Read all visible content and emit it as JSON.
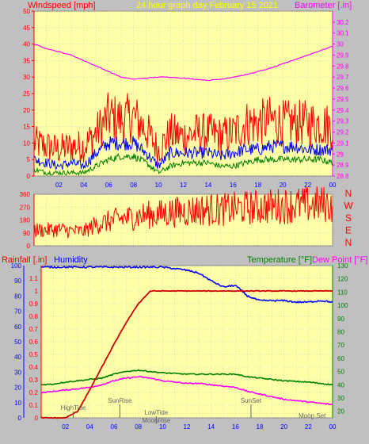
{
  "header": {
    "windspeed_label": "Windspeed [mph]",
    "title": "24 hour graph day   February 15 2021",
    "barometer_label": "Barometer [.in]"
  },
  "colors": {
    "background": "#c0c0c0",
    "plot": "#ffffa8",
    "grid": "#c8c8c8",
    "gust": "#ff0000",
    "wind_avg": "#0000ff",
    "wind_low": "#008000",
    "barometer": "#ff00ff",
    "direction": "#ff0000",
    "rain": "#cc0000",
    "humidity": "#0000ff",
    "temperature": "#008000",
    "dewpoint": "#ff00ff",
    "axis_red": "#ff0000",
    "axis_blue": "#0000ff",
    "axis_green": "#008000",
    "axis_magenta": "#ff00ff",
    "axis_gray": "#666666"
  },
  "chart_data": [
    {
      "type": "line",
      "name": "wind-barometer",
      "x_ticks": [
        "02",
        "04",
        "06",
        "08",
        "10",
        "12",
        "14",
        "16",
        "18",
        "20",
        "22",
        "00"
      ],
      "left_axis": {
        "label": "Windspeed [mph]",
        "ylim": [
          0,
          50
        ],
        "ticks": [
          0,
          5,
          10,
          15,
          20,
          25,
          30,
          35,
          40,
          45,
          50
        ]
      },
      "right_axis": {
        "label": "Barometer [.in]",
        "ylim": [
          28.8,
          30.3
        ],
        "ticks": [
          "28.8",
          "28.9",
          "29",
          "29.1",
          "29.2",
          "29.3",
          "29.4",
          "29.5",
          "29.6",
          "29.7",
          "29.8",
          "29.9",
          "30",
          "30.1",
          "30.2"
        ]
      },
      "x_hours": [
        0,
        1,
        2,
        3,
        4,
        5,
        6,
        7,
        8,
        9,
        10,
        11,
        12,
        13,
        14,
        15,
        16,
        17,
        18,
        19,
        20,
        21,
        22,
        23,
        24
      ],
      "series": [
        {
          "role": "gust",
          "axis": "left",
          "values": [
            10,
            9,
            8,
            9,
            9,
            13,
            18,
            17,
            18,
            14,
            8,
            13,
            12,
            13,
            13,
            12,
            13,
            16,
            16,
            17,
            16,
            16,
            16,
            16,
            15
          ]
        },
        {
          "role": "average",
          "axis": "left",
          "values": [
            5,
            4,
            3,
            4,
            3,
            7,
            10,
            10,
            10,
            7,
            3,
            7,
            7,
            7,
            7,
            6,
            7,
            8,
            8,
            9,
            9,
            9,
            8,
            8,
            8
          ]
        },
        {
          "role": "low",
          "axis": "left",
          "values": [
            2,
            1,
            1,
            1,
            1,
            3,
            5,
            6,
            6,
            4,
            1,
            3,
            4,
            4,
            4,
            3,
            3,
            4,
            5,
            5,
            5,
            5,
            5,
            5,
            4
          ]
        },
        {
          "role": "barometer",
          "axis": "right",
          "values": [
            30.0,
            29.96,
            29.93,
            29.9,
            29.85,
            29.8,
            29.75,
            29.7,
            29.68,
            29.69,
            29.7,
            29.7,
            29.69,
            29.68,
            29.67,
            29.68,
            29.7,
            29.72,
            29.75,
            29.78,
            29.82,
            29.86,
            29.9,
            29.94,
            29.98
          ]
        }
      ]
    },
    {
      "type": "line",
      "name": "wind-direction",
      "left_axis": {
        "ylim": [
          0,
          360
        ],
        "ticks": [
          0,
          90,
          180,
          270,
          360
        ]
      },
      "right_labels": [
        "N",
        "W",
        "S",
        "E",
        "N"
      ],
      "x_hours": [
        0,
        1,
        2,
        3,
        4,
        5,
        6,
        7,
        8,
        9,
        10,
        11,
        12,
        13,
        14,
        15,
        16,
        17,
        18,
        19,
        20,
        21,
        22,
        23,
        24
      ],
      "series": [
        {
          "role": "direction",
          "values": [
            110,
            110,
            115,
            105,
            100,
            150,
            170,
            190,
            200,
            215,
            220,
            235,
            240,
            250,
            255,
            250,
            260,
            265,
            270,
            275,
            280,
            285,
            285,
            290,
            290
          ]
        }
      ]
    },
    {
      "type": "line",
      "name": "rain-humidity-temperature",
      "x_ticks": [
        "02",
        "04",
        "06",
        "08",
        "10",
        "12",
        "14",
        "16",
        "18",
        "20",
        "22",
        "00"
      ],
      "left_labels": {
        "rainfall": "Rainfall [.in]",
        "humidity": "Humidity"
      },
      "right_labels": {
        "temperature": "Temperature [°F]",
        "dewpoint": "Dew Point [°F]"
      },
      "rain_axis": {
        "ylim": [
          0,
          1.2
        ],
        "ticks": [
          "0",
          "0.1",
          "0.2",
          "0.3",
          "0.4",
          "0.5",
          "0.6",
          "0.7",
          "0.8",
          "0.9",
          "1",
          "1.1"
        ]
      },
      "humidity_axis": {
        "ylim": [
          0,
          100
        ],
        "ticks": [
          0,
          10,
          20,
          30,
          40,
          50,
          60,
          70,
          80,
          90,
          100
        ]
      },
      "temp_axis": {
        "ylim": [
          15,
          130
        ],
        "ticks": [
          20,
          30,
          40,
          50,
          60,
          70,
          80,
          90,
          100,
          110,
          120,
          130
        ]
      },
      "x_hours": [
        0,
        1,
        2,
        3,
        4,
        5,
        6,
        7,
        8,
        9,
        10,
        11,
        12,
        13,
        14,
        15,
        16,
        17,
        18,
        19,
        20,
        21,
        22,
        23,
        24
      ],
      "series": [
        {
          "role": "rainfall",
          "values": [
            0,
            0,
            0,
            0.05,
            0.22,
            0.4,
            0.58,
            0.75,
            0.9,
            1.0,
            1.0,
            1.0,
            1.0,
            1.0,
            1.0,
            1.0,
            1.0,
            1.0,
            1.0,
            1.0,
            1.0,
            1.0,
            1.0,
            1.0,
            1.0
          ]
        },
        {
          "role": "humidity",
          "values": [
            99,
            99,
            99,
            99,
            99,
            99,
            99,
            99,
            99,
            99,
            99,
            98,
            97,
            95,
            90,
            86,
            87,
            80,
            77,
            77,
            77,
            76,
            76,
            77,
            76
          ]
        },
        {
          "role": "temperature",
          "values": [
            40,
            40.5,
            42,
            43,
            44,
            45,
            48,
            50,
            51,
            50,
            49,
            48.5,
            48,
            48,
            48,
            48,
            48,
            46,
            45,
            44,
            43,
            42.5,
            42,
            41,
            40
          ]
        },
        {
          "role": "dewpoint",
          "values": [
            34,
            35,
            36,
            37,
            38,
            40,
            43,
            45,
            46,
            45,
            43,
            42,
            41,
            41,
            40,
            39,
            38,
            35,
            33,
            31,
            29,
            28,
            27,
            26,
            25
          ]
        }
      ],
      "annotations": [
        "HighTide",
        "SunRise",
        "LowTide",
        "MoonRise",
        "SunSet",
        "Moon Set"
      ]
    }
  ]
}
